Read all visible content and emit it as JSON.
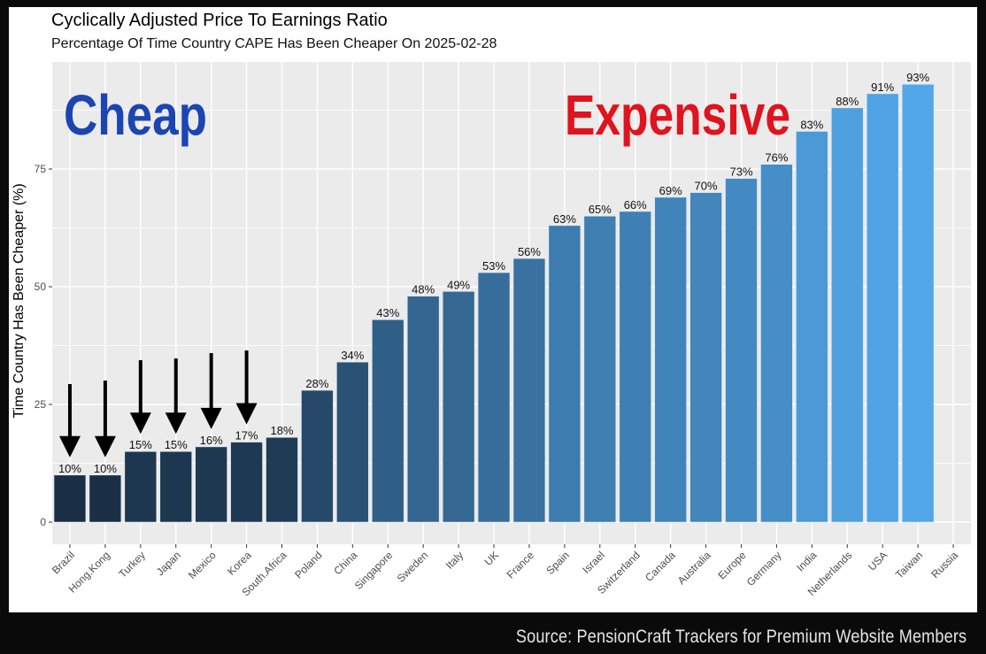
{
  "header": {
    "title": "Cyclically Adjusted Price To Earnings Ratio",
    "subtitle": "Percentage Of Time Country CAPE Has Been Cheaper On 2025-02-28"
  },
  "annotations": {
    "cheap_label": "Cheap",
    "cheap_color": "#1b45b0",
    "expensive_label": "Expensive",
    "expensive_color": "#e0141e",
    "arrow_icon": "down-arrow-icon",
    "arrow_targets": [
      "Brazil",
      "Hong.Kong",
      "Turkey",
      "Japan",
      "Mexico",
      "Korea"
    ]
  },
  "footer": {
    "source": "Source: PensionCraft Trackers for Premium Website Members"
  },
  "chart_data": {
    "type": "bar",
    "title": "Cyclically Adjusted Price To Earnings Ratio",
    "subtitle": "Percentage Of Time Country CAPE Has Been Cheaper On 2025-02-28",
    "xlabel": "",
    "ylabel": "Time Country Has Been Cheaper (%)",
    "ylim": [
      0,
      97
    ],
    "yticks": [
      0,
      25,
      50,
      75
    ],
    "grid": true,
    "legend": "none",
    "categories": [
      "Brazil",
      "Hong.Kong",
      "Turkey",
      "Japan",
      "Mexico",
      "Korea",
      "South.Africa",
      "Poland",
      "China",
      "Singapore",
      "Sweden",
      "Italy",
      "UK",
      "France",
      "Spain",
      "Israel",
      "Switzerland",
      "Canada",
      "Australia",
      "Europe",
      "Germany",
      "India",
      "Netherlands",
      "USA",
      "Taiwan",
      "Russia"
    ],
    "values": [
      10,
      10,
      15,
      15,
      16,
      17,
      18,
      28,
      34,
      43,
      48,
      49,
      53,
      56,
      63,
      65,
      66,
      69,
      70,
      73,
      76,
      83,
      88,
      91,
      93,
      null
    ],
    "labels": [
      "10%",
      "10%",
      "15%",
      "15%",
      "16%",
      "17%",
      "18%",
      "28%",
      "34%",
      "43%",
      "48%",
      "49%",
      "53%",
      "56%",
      "63%",
      "65%",
      "66%",
      "69%",
      "70%",
      "73%",
      "76%",
      "83%",
      "88%",
      "91%",
      "93%",
      ""
    ],
    "color_low": "#132132",
    "color_high": "#56b1f7",
    "panel_background": "#ebebeb",
    "gridline_color": "#ffffff"
  }
}
